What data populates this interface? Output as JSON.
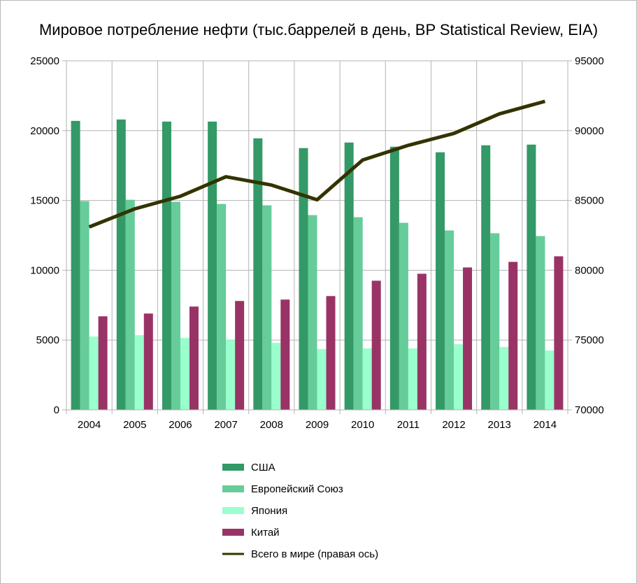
{
  "chart_data": {
    "type": "bar",
    "title": "Мировое потребление нефти (тыс.баррелей в день, BP Statistical Review, EIA)",
    "xlabel": "",
    "ylabel": "",
    "categories": [
      "2004",
      "2005",
      "2006",
      "2007",
      "2008",
      "2009",
      "2010",
      "2011",
      "2012",
      "2013",
      "2014"
    ],
    "ylim": [
      0,
      25000
    ],
    "y_ticks": [
      "0",
      "5000",
      "10000",
      "15000",
      "20000",
      "25000"
    ],
    "y2lim": [
      70000,
      95000
    ],
    "y2_ticks": [
      "70000",
      "75000",
      "80000",
      "85000",
      "90000",
      "95000"
    ],
    "grid": true,
    "legend_position": "bottom",
    "series": [
      {
        "name": "США",
        "kind": "bar",
        "color": "#339966",
        "values": [
          20700,
          20800,
          20650,
          20650,
          19450,
          18750,
          19150,
          18850,
          18450,
          18950,
          19000
        ]
      },
      {
        "name": "Европейский Союз",
        "kind": "bar",
        "color": "#66cc99",
        "values": [
          14950,
          15050,
          14900,
          14750,
          14650,
          13950,
          13800,
          13400,
          12850,
          12650,
          12450
        ]
      },
      {
        "name": "Япония",
        "kind": "bar",
        "color": "#99ffcc",
        "values": [
          5250,
          5350,
          5150,
          5000,
          4800,
          4350,
          4400,
          4400,
          4700,
          4500,
          4250
        ]
      },
      {
        "name": "Китай",
        "kind": "bar",
        "color": "#993366",
        "values": [
          6700,
          6900,
          7400,
          7800,
          7900,
          8150,
          9250,
          9750,
          10200,
          10600,
          11000
        ]
      },
      {
        "name": "Всего в мире (правая ось)",
        "kind": "line",
        "axis": "right",
        "color": "#333300",
        "values": [
          83100,
          84400,
          85300,
          86700,
          86100,
          85050,
          87900,
          88950,
          89800,
          91200,
          92100
        ]
      }
    ]
  }
}
